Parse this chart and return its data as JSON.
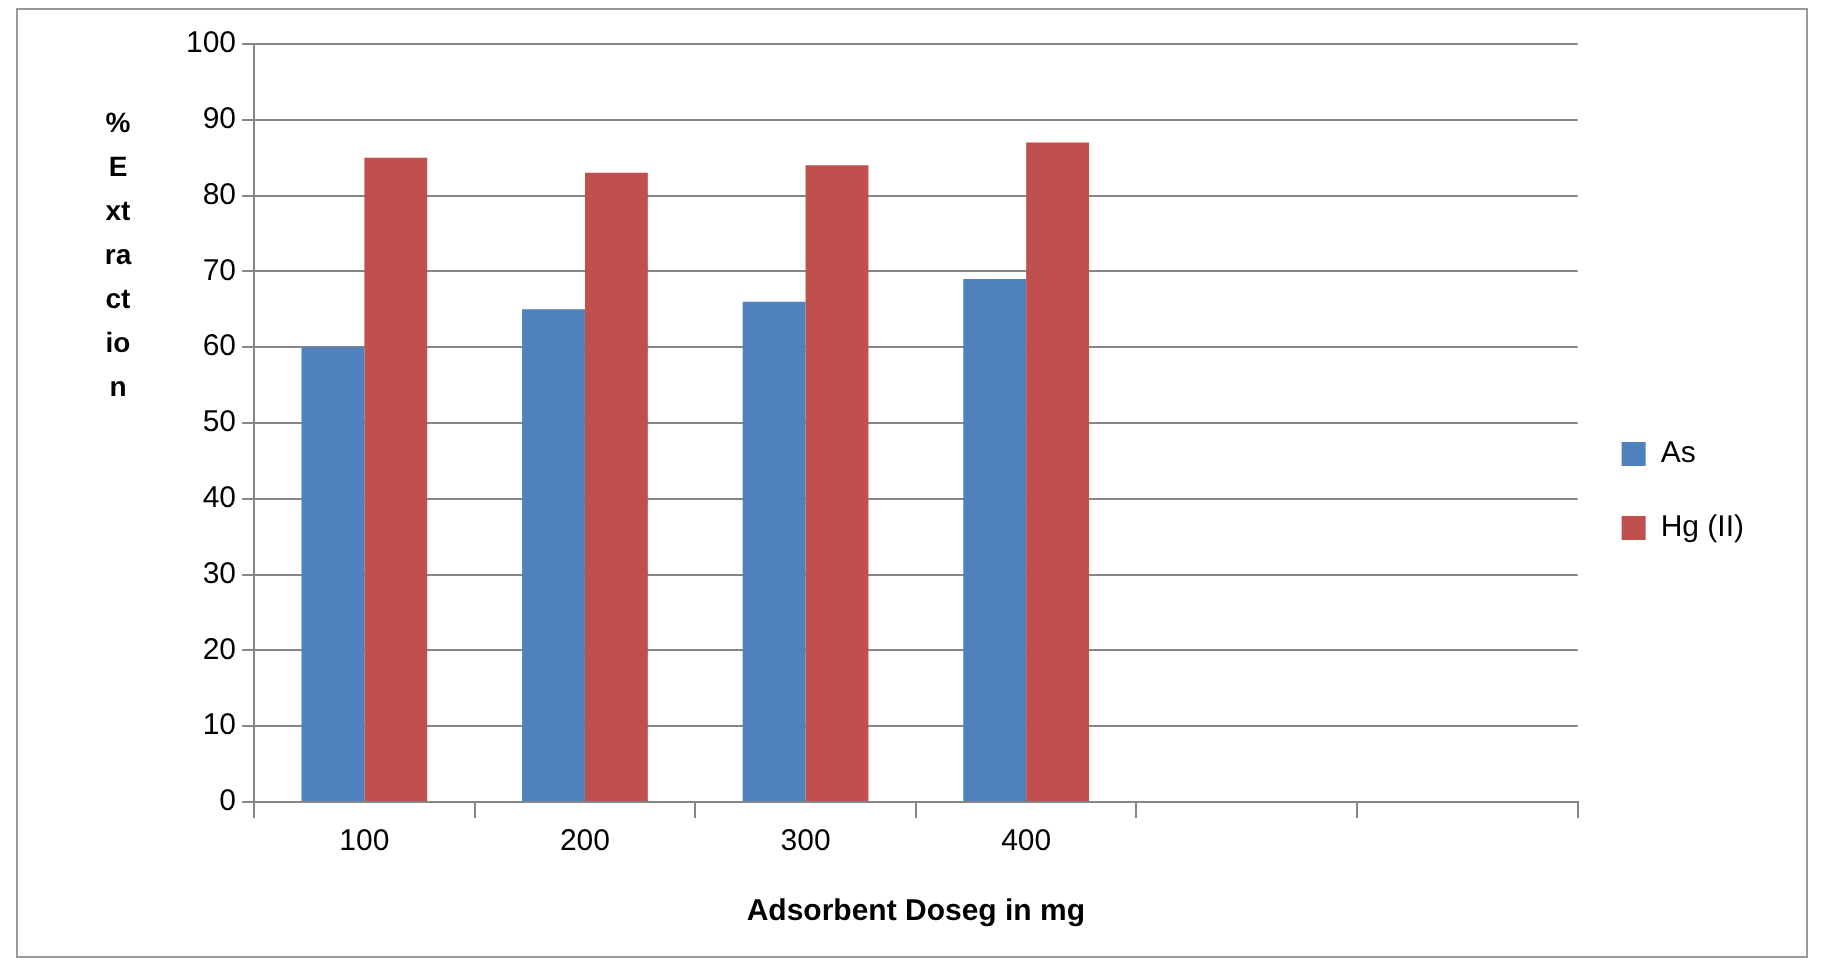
{
  "chart_data": {
    "type": "bar",
    "xlabel": "Adsorbent Doseg in mg",
    "ylabel": "% Extraction",
    "categories": [
      "100",
      "200",
      "300",
      "400",
      null,
      null
    ],
    "series": [
      {
        "name": "As",
        "color": "#4f81bd",
        "values": [
          60,
          65,
          66,
          69,
          null,
          null
        ]
      },
      {
        "name": "Hg (II)",
        "color": "#c0504d",
        "values": [
          85,
          83,
          84,
          87,
          null,
          null
        ]
      }
    ],
    "ylim": [
      0,
      100
    ],
    "yticks": [
      0,
      10,
      20,
      30,
      40,
      50,
      60,
      70,
      80,
      90,
      100
    ],
    "grid": "y",
    "legend": "right"
  }
}
